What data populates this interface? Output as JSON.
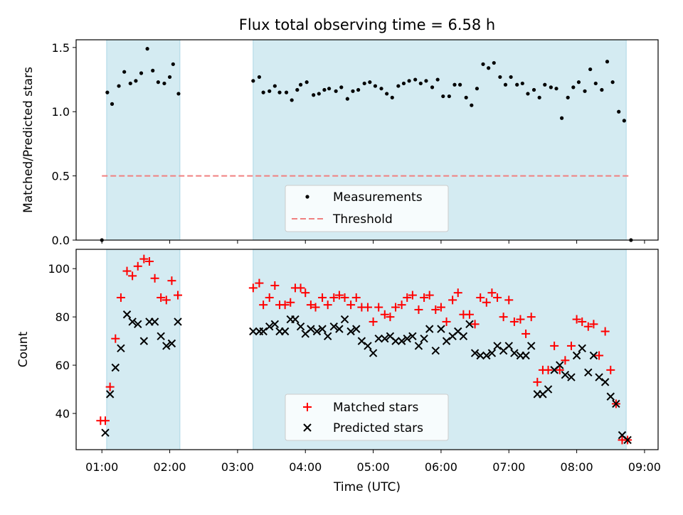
{
  "chart_data": [
    {
      "type": "scatter",
      "title": "Flux total observing time = 6.58 h",
      "xlabel": "",
      "ylabel": "Matched/Predicted stars",
      "xlim_hours": [
        0.62,
        9.2
      ],
      "ylim": [
        0,
        1.56
      ],
      "yticks": [
        "0.0",
        "0.5",
        "1.0",
        "1.5"
      ],
      "shaded_intervals_hours": [
        [
          1.07,
          2.15
        ],
        [
          3.23,
          8.73
        ]
      ],
      "shade_color": "#add8e6",
      "threshold": {
        "name": "Threshold",
        "value": 0.5,
        "x_range_hours": [
          1.0,
          8.8
        ],
        "color": "#f08080"
      },
      "series": [
        {
          "name": "Measurements",
          "color": "#000000",
          "points": [
            [
              1.0,
              0.0
            ],
            [
              1.08,
              1.15
            ],
            [
              1.15,
              1.06
            ],
            [
              1.25,
              1.2
            ],
            [
              1.33,
              1.31
            ],
            [
              1.42,
              1.22
            ],
            [
              1.5,
              1.24
            ],
            [
              1.58,
              1.3
            ],
            [
              1.67,
              1.49
            ],
            [
              1.75,
              1.32
            ],
            [
              1.83,
              1.23
            ],
            [
              1.92,
              1.22
            ],
            [
              2.0,
              1.27
            ],
            [
              2.05,
              1.37
            ],
            [
              2.13,
              1.14
            ],
            [
              3.23,
              1.24
            ],
            [
              3.32,
              1.27
            ],
            [
              3.38,
              1.15
            ],
            [
              3.47,
              1.16
            ],
            [
              3.55,
              1.2
            ],
            [
              3.62,
              1.15
            ],
            [
              3.72,
              1.15
            ],
            [
              3.8,
              1.09
            ],
            [
              3.88,
              1.17
            ],
            [
              3.93,
              1.21
            ],
            [
              4.02,
              1.23
            ],
            [
              4.12,
              1.13
            ],
            [
              4.2,
              1.14
            ],
            [
              4.28,
              1.17
            ],
            [
              4.35,
              1.18
            ],
            [
              4.45,
              1.16
            ],
            [
              4.53,
              1.19
            ],
            [
              4.62,
              1.1
            ],
            [
              4.7,
              1.16
            ],
            [
              4.78,
              1.17
            ],
            [
              4.87,
              1.22
            ],
            [
              4.95,
              1.23
            ],
            [
              5.03,
              1.2
            ],
            [
              5.12,
              1.18
            ],
            [
              5.2,
              1.14
            ],
            [
              5.28,
              1.11
            ],
            [
              5.37,
              1.2
            ],
            [
              5.45,
              1.22
            ],
            [
              5.53,
              1.24
            ],
            [
              5.62,
              1.25
            ],
            [
              5.7,
              1.22
            ],
            [
              5.78,
              1.24
            ],
            [
              5.87,
              1.19
            ],
            [
              5.95,
              1.25
            ],
            [
              6.03,
              1.12
            ],
            [
              6.12,
              1.12
            ],
            [
              6.2,
              1.21
            ],
            [
              6.28,
              1.21
            ],
            [
              6.37,
              1.11
            ],
            [
              6.45,
              1.05
            ],
            [
              6.53,
              1.18
            ],
            [
              6.62,
              1.37
            ],
            [
              6.7,
              1.34
            ],
            [
              6.78,
              1.38
            ],
            [
              6.87,
              1.27
            ],
            [
              6.95,
              1.21
            ],
            [
              7.03,
              1.27
            ],
            [
              7.12,
              1.21
            ],
            [
              7.2,
              1.22
            ],
            [
              7.28,
              1.14
            ],
            [
              7.37,
              1.17
            ],
            [
              7.45,
              1.11
            ],
            [
              7.53,
              1.21
            ],
            [
              7.62,
              1.19
            ],
            [
              7.7,
              1.18
            ],
            [
              7.78,
              0.95
            ],
            [
              7.87,
              1.11
            ],
            [
              7.95,
              1.19
            ],
            [
              8.03,
              1.23
            ],
            [
              8.12,
              1.16
            ],
            [
              8.2,
              1.33
            ],
            [
              8.28,
              1.22
            ],
            [
              8.37,
              1.17
            ],
            [
              8.45,
              1.39
            ],
            [
              8.53,
              1.23
            ],
            [
              8.62,
              1.0
            ],
            [
              8.7,
              0.93
            ],
            [
              8.8,
              0.0
            ]
          ]
        }
      ],
      "legend": {
        "placement": "lower-center"
      }
    },
    {
      "type": "scatter",
      "title": "",
      "xlabel": "Time (UTC)",
      "ylabel": "Count",
      "xlim_hours": [
        0.62,
        9.2
      ],
      "ylim": [
        25,
        108
      ],
      "yticks": [
        "40",
        "60",
        "80",
        "100"
      ],
      "xticks": [
        "01:00",
        "02:00",
        "03:00",
        "04:00",
        "05:00",
        "06:00",
        "07:00",
        "08:00",
        "09:00"
      ],
      "shaded_intervals_hours": [
        [
          1.07,
          2.15
        ],
        [
          3.23,
          8.73
        ]
      ],
      "series": [
        {
          "name": "Matched stars",
          "marker": "plus",
          "color": "#ff0000",
          "points": [
            [
              0.98,
              37
            ],
            [
              1.05,
              37
            ],
            [
              1.12,
              51
            ],
            [
              1.2,
              71
            ],
            [
              1.28,
              88
            ],
            [
              1.37,
              99
            ],
            [
              1.45,
              97
            ],
            [
              1.53,
              101
            ],
            [
              1.62,
              104
            ],
            [
              1.7,
              103
            ],
            [
              1.78,
              96
            ],
            [
              1.87,
              88
            ],
            [
              1.95,
              87
            ],
            [
              2.03,
              95
            ],
            [
              2.12,
              89
            ],
            [
              3.23,
              92
            ],
            [
              3.32,
              94
            ],
            [
              3.38,
              85
            ],
            [
              3.47,
              88
            ],
            [
              3.55,
              93
            ],
            [
              3.62,
              85
            ],
            [
              3.7,
              85
            ],
            [
              3.78,
              86
            ],
            [
              3.85,
              92
            ],
            [
              3.93,
              92
            ],
            [
              4.0,
              90
            ],
            [
              4.08,
              85
            ],
            [
              4.15,
              84
            ],
            [
              4.25,
              88
            ],
            [
              4.33,
              85
            ],
            [
              4.42,
              88
            ],
            [
              4.5,
              89
            ],
            [
              4.58,
              88
            ],
            [
              4.67,
              85
            ],
            [
              4.75,
              88
            ],
            [
              4.83,
              84
            ],
            [
              4.92,
              84
            ],
            [
              5.0,
              78
            ],
            [
              5.08,
              84
            ],
            [
              5.17,
              81
            ],
            [
              5.25,
              80
            ],
            [
              5.33,
              84
            ],
            [
              5.42,
              85
            ],
            [
              5.5,
              88
            ],
            [
              5.58,
              89
            ],
            [
              5.67,
              83
            ],
            [
              5.75,
              88
            ],
            [
              5.83,
              89
            ],
            [
              5.92,
              83
            ],
            [
              6.0,
              84
            ],
            [
              6.08,
              78
            ],
            [
              6.17,
              87
            ],
            [
              6.25,
              90
            ],
            [
              6.33,
              81
            ],
            [
              6.42,
              81
            ],
            [
              6.5,
              77
            ],
            [
              6.58,
              88
            ],
            [
              6.67,
              86
            ],
            [
              6.75,
              90
            ],
            [
              6.83,
              88
            ],
            [
              6.92,
              80
            ],
            [
              7.0,
              87
            ],
            [
              7.08,
              78
            ],
            [
              7.17,
              79
            ],
            [
              7.25,
              73
            ],
            [
              7.33,
              80
            ],
            [
              7.42,
              53
            ],
            [
              7.5,
              58
            ],
            [
              7.58,
              58
            ],
            [
              7.67,
              68
            ],
            [
              7.75,
              58
            ],
            [
              7.83,
              62
            ],
            [
              7.92,
              68
            ],
            [
              8.0,
              79
            ],
            [
              8.08,
              78
            ],
            [
              8.17,
              76
            ],
            [
              8.25,
              77
            ],
            [
              8.33,
              64
            ],
            [
              8.42,
              74
            ],
            [
              8.5,
              58
            ],
            [
              8.58,
              44
            ],
            [
              8.67,
              29
            ],
            [
              8.75,
              29
            ]
          ]
        },
        {
          "name": "Predicted stars",
          "marker": "x",
          "color": "#000000",
          "points": [
            [
              1.05,
              32
            ],
            [
              1.12,
              48
            ],
            [
              1.2,
              59
            ],
            [
              1.28,
              67
            ],
            [
              1.37,
              81
            ],
            [
              1.45,
              78
            ],
            [
              1.53,
              77
            ],
            [
              1.62,
              70
            ],
            [
              1.7,
              78
            ],
            [
              1.78,
              78
            ],
            [
              1.87,
              72
            ],
            [
              1.95,
              68
            ],
            [
              2.03,
              69
            ],
            [
              2.12,
              78
            ],
            [
              3.23,
              74
            ],
            [
              3.32,
              74
            ],
            [
              3.38,
              74
            ],
            [
              3.47,
              76
            ],
            [
              3.55,
              77
            ],
            [
              3.62,
              74
            ],
            [
              3.7,
              74
            ],
            [
              3.78,
              79
            ],
            [
              3.85,
              79
            ],
            [
              3.93,
              76
            ],
            [
              4.0,
              73
            ],
            [
              4.08,
              75
            ],
            [
              4.17,
              74
            ],
            [
              4.25,
              75
            ],
            [
              4.33,
              72
            ],
            [
              4.42,
              76
            ],
            [
              4.5,
              75
            ],
            [
              4.58,
              79
            ],
            [
              4.67,
              74
            ],
            [
              4.75,
              75
            ],
            [
              4.83,
              70
            ],
            [
              4.92,
              68
            ],
            [
              5.0,
              65
            ],
            [
              5.08,
              71
            ],
            [
              5.17,
              71
            ],
            [
              5.25,
              72
            ],
            [
              5.33,
              70
            ],
            [
              5.42,
              70
            ],
            [
              5.5,
              71
            ],
            [
              5.58,
              72
            ],
            [
              5.67,
              68
            ],
            [
              5.75,
              71
            ],
            [
              5.83,
              75
            ],
            [
              5.92,
              66
            ],
            [
              6.0,
              75
            ],
            [
              6.08,
              70
            ],
            [
              6.17,
              72
            ],
            [
              6.25,
              74
            ],
            [
              6.33,
              72
            ],
            [
              6.42,
              77
            ],
            [
              6.5,
              65
            ],
            [
              6.58,
              64
            ],
            [
              6.67,
              64
            ],
            [
              6.75,
              65
            ],
            [
              6.83,
              68
            ],
            [
              6.92,
              66
            ],
            [
              7.0,
              68
            ],
            [
              7.08,
              65
            ],
            [
              7.17,
              64
            ],
            [
              7.25,
              64
            ],
            [
              7.33,
              68
            ],
            [
              7.42,
              48
            ],
            [
              7.5,
              48
            ],
            [
              7.58,
              50
            ],
            [
              7.67,
              58
            ],
            [
              7.75,
              60
            ],
            [
              7.83,
              56
            ],
            [
              7.92,
              55
            ],
            [
              8.0,
              64
            ],
            [
              8.08,
              67
            ],
            [
              8.17,
              57
            ],
            [
              8.25,
              64
            ],
            [
              8.33,
              55
            ],
            [
              8.42,
              53
            ],
            [
              8.5,
              47
            ],
            [
              8.58,
              44
            ],
            [
              8.67,
              31
            ],
            [
              8.75,
              29
            ]
          ]
        }
      ],
      "legend": {
        "placement": "lower-center"
      }
    }
  ]
}
